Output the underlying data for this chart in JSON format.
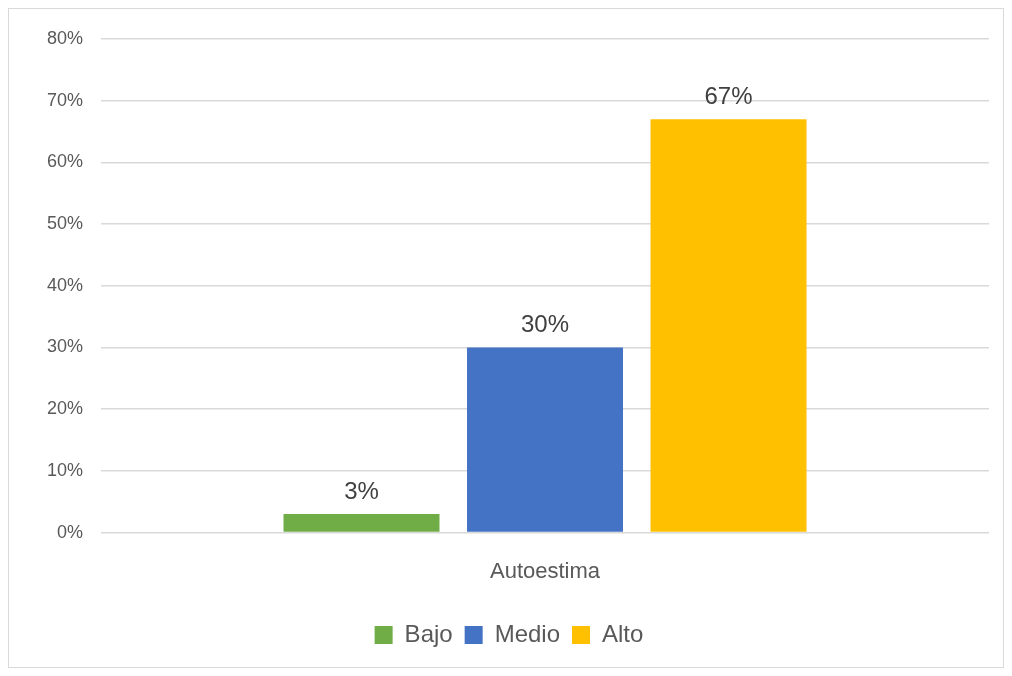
{
  "chart_data": {
    "type": "bar",
    "categories": [
      "Autoestima"
    ],
    "series": [
      {
        "name": "Bajo",
        "color": "#70ad47",
        "values": [
          3
        ],
        "value_labels": [
          "3%"
        ]
      },
      {
        "name": "Medio",
        "color": "#4472c4",
        "values": [
          30
        ],
        "value_labels": [
          "30%"
        ]
      },
      {
        "name": "Alto",
        "color": "#ffc000",
        "values": [
          67
        ],
        "value_labels": [
          "67%"
        ]
      }
    ],
    "ylim": [
      0,
      80
    ],
    "yticks": [
      {
        "value": 0,
        "label": "0%"
      },
      {
        "value": 10,
        "label": "10%"
      },
      {
        "value": 20,
        "label": "20%"
      },
      {
        "value": 30,
        "label": "30%"
      },
      {
        "value": 40,
        "label": "40%"
      },
      {
        "value": 50,
        "label": "50%"
      },
      {
        "value": 60,
        "label": "60%"
      },
      {
        "value": 70,
        "label": "70%"
      },
      {
        "value": 80,
        "label": "80%"
      }
    ],
    "grid": "y",
    "legend": "bottom"
  }
}
